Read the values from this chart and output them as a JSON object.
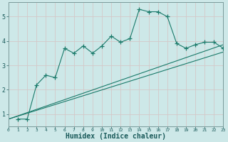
{
  "xlabel": "Humidex (Indice chaleur)",
  "background_color": "#cde8e8",
  "grid_color": "#d4c8c8",
  "line_color": "#1a7a6a",
  "xlim": [
    0,
    23
  ],
  "ylim": [
    0.5,
    5.6
  ],
  "yticks": [
    1,
    2,
    3,
    4,
    5
  ],
  "series1_x": [
    1,
    2,
    3,
    4,
    5,
    6,
    7,
    8,
    9,
    10,
    11,
    12,
    13,
    14,
    15,
    16,
    17,
    18,
    19,
    20,
    21,
    22,
    23
  ],
  "series1_y": [
    0.8,
    0.8,
    2.2,
    2.6,
    2.5,
    3.7,
    3.5,
    3.8,
    3.5,
    3.8,
    4.2,
    3.95,
    4.1,
    5.3,
    5.2,
    5.2,
    5.0,
    3.9,
    3.7,
    3.85,
    3.95,
    3.95,
    3.7
  ],
  "series2_x": [
    0,
    23
  ],
  "series2_y": [
    0.8,
    3.55
  ],
  "series3_x": [
    0,
    23
  ],
  "series3_y": [
    0.8,
    3.85
  ],
  "marker_size": 4,
  "line_width": 0.8
}
